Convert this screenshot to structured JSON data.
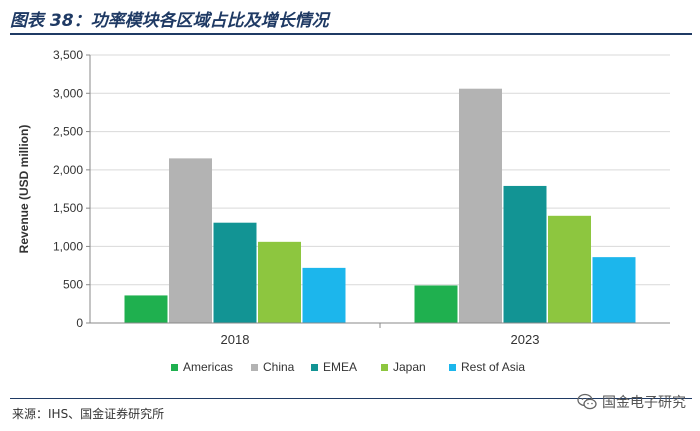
{
  "header": {
    "title": "图表 38：功率模块各区域占比及增长情况"
  },
  "footer": {
    "source": "来源：IHS、国金证券研究所",
    "watermark_icon": "wechat-icon",
    "watermark": "国金电子研究"
  },
  "chart_data": {
    "type": "bar",
    "title": "",
    "xlabel": "",
    "ylabel": "Revenue (USD million)",
    "categories": [
      "2018",
      "2023"
    ],
    "series": [
      {
        "name": "Americas",
        "color": "#1fb04f",
        "values": [
          360,
          490
        ]
      },
      {
        "name": "China",
        "color": "#b3b3b3",
        "values": [
          2150,
          3060
        ]
      },
      {
        "name": "EMEA",
        "color": "#129494",
        "values": [
          1310,
          1790
        ]
      },
      {
        "name": "Japan",
        "color": "#8dc63f",
        "values": [
          1060,
          1400
        ]
      },
      {
        "name": "Rest of Asia",
        "color": "#1cb6ec",
        "values": [
          720,
          860
        ]
      }
    ],
    "ylim": [
      0,
      3500
    ],
    "yticks": [
      0,
      500,
      1000,
      1500,
      2000,
      2500,
      3000,
      3500
    ],
    "ytick_labels": [
      "0",
      "500",
      "1,000",
      "1,500",
      "2,000",
      "2,500",
      "3,000",
      "3,500"
    ],
    "grid": true,
    "legend_position": "bottom"
  }
}
